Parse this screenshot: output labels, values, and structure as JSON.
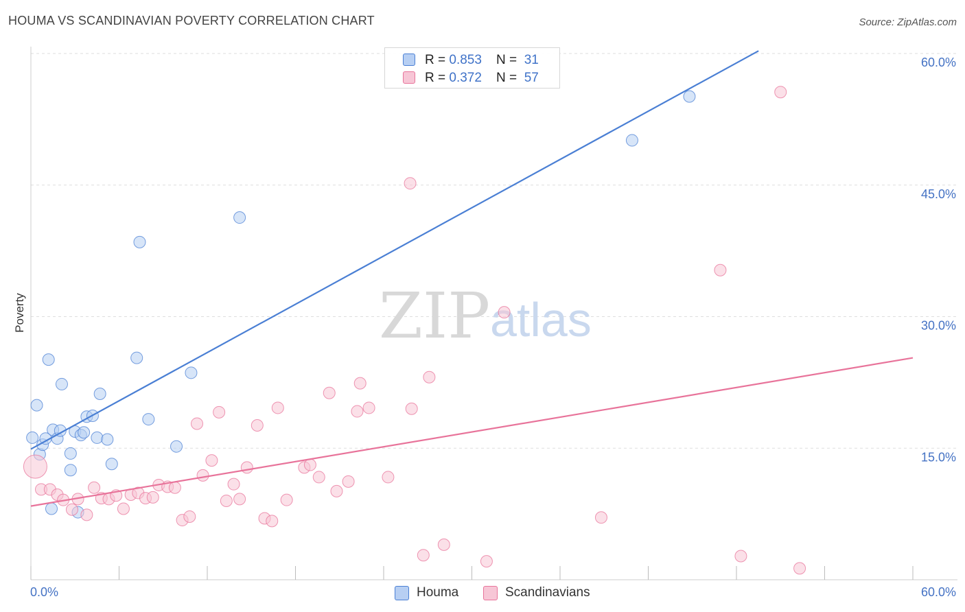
{
  "title": "HOUMA VS SCANDINAVIAN POVERTY CORRELATION CHART",
  "source": "Source: ZipAtlas.com",
  "watermark": {
    "zip": "ZIP",
    "atlas": "atlas"
  },
  "legend": {
    "rows": [
      {
        "r_label": "R = ",
        "r_value": "0.853",
        "n_label": "N = ",
        "n_value": "31"
      },
      {
        "r_label": "R = ",
        "r_value": "0.372",
        "n_label": "N = ",
        "n_value": "57"
      }
    ]
  },
  "chart_data": {
    "type": "scatter",
    "title": "HOUMA VS SCANDINAVIAN POVERTY CORRELATION CHART",
    "xlabel": "",
    "ylabel": "Poverty",
    "xlim": [
      0,
      60
    ],
    "ylim": [
      0,
      60
    ],
    "x_tick_labels": [
      "0.0%",
      "60.0%"
    ],
    "y_ticks": [
      15,
      30,
      45,
      60
    ],
    "y_tick_labels": [
      "15.0%",
      "30.0%",
      "45.0%",
      "60.0%"
    ],
    "grid": true,
    "legend_position": "top-center",
    "series": [
      {
        "name": "Houma",
        "color": "#4a7fd4",
        "fill": "#b7cff3",
        "r": "0.853",
        "n": "31",
        "trendline": {
          "x": [
            0,
            49.5
          ],
          "y": [
            14.9,
            60.3
          ]
        },
        "points": [
          [
            0.1,
            16.2
          ],
          [
            0.4,
            19.9
          ],
          [
            0.6,
            14.3
          ],
          [
            0.8,
            15.4
          ],
          [
            1.0,
            16.1
          ],
          [
            1.2,
            25.1
          ],
          [
            1.4,
            8.1
          ],
          [
            1.5,
            17.1
          ],
          [
            1.8,
            16.1
          ],
          [
            2.0,
            17.0
          ],
          [
            2.1,
            22.3
          ],
          [
            2.7,
            14.4
          ],
          [
            2.7,
            12.5
          ],
          [
            3.0,
            16.9
          ],
          [
            3.2,
            7.7
          ],
          [
            3.4,
            16.5
          ],
          [
            3.6,
            16.8
          ],
          [
            3.8,
            18.6
          ],
          [
            4.2,
            18.7
          ],
          [
            4.5,
            16.2
          ],
          [
            4.7,
            21.2
          ],
          [
            5.2,
            16.0
          ],
          [
            5.5,
            13.2
          ],
          [
            7.2,
            25.3
          ],
          [
            7.4,
            38.5
          ],
          [
            8.0,
            18.3
          ],
          [
            9.9,
            15.2
          ],
          [
            10.9,
            23.6
          ],
          [
            14.2,
            41.3
          ],
          [
            40.9,
            50.1
          ],
          [
            44.8,
            55.1
          ]
        ]
      },
      {
        "name": "Scandinavians",
        "color": "#e8739a",
        "fill": "#f7c6d6",
        "r": "0.372",
        "n": "57",
        "trendline": {
          "x": [
            0,
            60
          ],
          "y": [
            8.4,
            25.3
          ]
        },
        "points": [
          [
            0.3,
            12.9
          ],
          [
            0.7,
            10.3
          ],
          [
            1.3,
            10.3
          ],
          [
            1.8,
            9.7
          ],
          [
            2.2,
            9.1
          ],
          [
            2.8,
            8.0
          ],
          [
            3.2,
            9.2
          ],
          [
            3.8,
            7.4
          ],
          [
            4.3,
            10.5
          ],
          [
            4.8,
            9.3
          ],
          [
            5.3,
            9.2
          ],
          [
            5.8,
            9.6
          ],
          [
            6.3,
            8.1
          ],
          [
            6.8,
            9.7
          ],
          [
            7.3,
            9.9
          ],
          [
            7.8,
            9.3
          ],
          [
            8.3,
            9.4
          ],
          [
            8.7,
            10.8
          ],
          [
            9.3,
            10.6
          ],
          [
            9.8,
            10.5
          ],
          [
            10.3,
            6.8
          ],
          [
            10.8,
            7.2
          ],
          [
            11.3,
            17.8
          ],
          [
            11.7,
            11.9
          ],
          [
            12.3,
            13.6
          ],
          [
            12.8,
            19.1
          ],
          [
            13.3,
            9.0
          ],
          [
            13.8,
            10.9
          ],
          [
            14.2,
            9.2
          ],
          [
            14.7,
            12.8
          ],
          [
            15.4,
            17.6
          ],
          [
            15.9,
            7.0
          ],
          [
            16.4,
            6.7
          ],
          [
            16.8,
            19.6
          ],
          [
            17.4,
            9.1
          ],
          [
            18.6,
            12.8
          ],
          [
            19.0,
            13.1
          ],
          [
            19.6,
            11.7
          ],
          [
            20.3,
            21.3
          ],
          [
            20.8,
            10.1
          ],
          [
            21.6,
            11.2
          ],
          [
            22.2,
            19.2
          ],
          [
            22.4,
            22.4
          ],
          [
            23.0,
            19.6
          ],
          [
            24.3,
            11.7
          ],
          [
            25.8,
            45.2
          ],
          [
            25.9,
            19.5
          ],
          [
            27.1,
            23.1
          ],
          [
            26.7,
            2.8
          ],
          [
            28.1,
            4.0
          ],
          [
            31.0,
            2.1
          ],
          [
            32.2,
            30.5
          ],
          [
            38.8,
            7.1
          ],
          [
            46.9,
            35.3
          ],
          [
            48.3,
            2.7
          ],
          [
            51.0,
            55.6
          ],
          [
            52.3,
            1.3
          ]
        ]
      }
    ]
  }
}
